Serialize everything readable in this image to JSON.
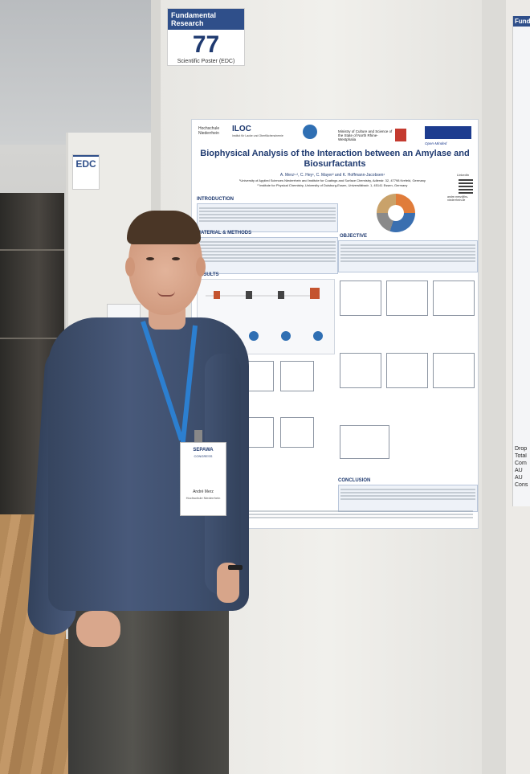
{
  "badge": {
    "category": "Fundamental Research",
    "number": "77",
    "type": "Scientific Poster (EDC)"
  },
  "side_badge": {
    "label": "EDC"
  },
  "right_poster": {
    "header": "Funda",
    "list": [
      "Drop",
      "Total",
      "Com",
      "AU",
      "AU",
      "Cons"
    ]
  },
  "poster": {
    "logos": {
      "left": "Hochschule Niederrhein",
      "iloc": "ILOC",
      "iloc_sub": "Institut für Lacke und Oberflächenchemie",
      "ministry": "Ministry of Culture and Science of the State of North Rhine-Westphalia",
      "ude": "UNIVERSITÄT DUISBURG ESSEN",
      "ude_sub": "Open-Minded"
    },
    "title": "Biophysical Analysis of the Interaction between an Amylase and Biosurfactants",
    "authors": "A. Merz¹·², C. Hey¹, C. Mayer² and K. Hoffmann-Jacobsen¹",
    "affiliation1": "¹University of Applied Sciences Niederrhein and Institute for Coatings and Surface Chemistry, Adlerstr. 32, 47798 Krefeld, Germany",
    "affiliation2": "² Institute for Physical Chemistry, University of Duisburg-Essen, Universitätsstr. 1, 45141 Essen, Germany",
    "linkedin": "LinkedIn",
    "email": "andre.merz@hs-niederrhein.de",
    "sections": {
      "introduction": "INTRODUCTION",
      "objective": "OBJECTIVE",
      "material_methods": "MATERIAL & METHODS",
      "results": "RESULTS",
      "conclusion": "CONCLUSION"
    }
  },
  "namebadge": {
    "event": "SEPAWA",
    "event_sub": "CONGRESS",
    "name": "André Merz",
    "org": "Hochschule Niederrhein"
  }
}
